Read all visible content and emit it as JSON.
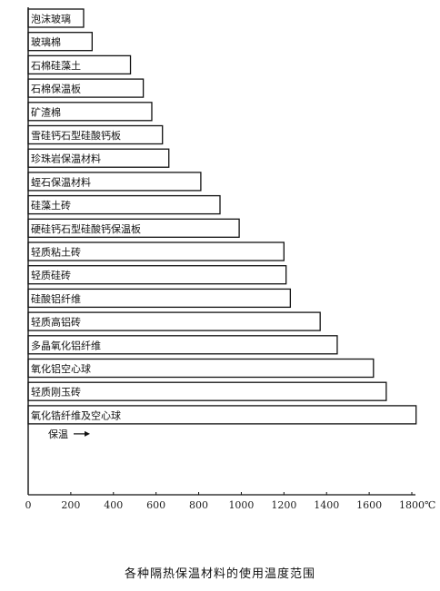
{
  "chart_data": {
    "type": "bar",
    "orientation": "horizontal",
    "title": "各种隔热保温材料的使用温度范围",
    "xlabel": "",
    "ylabel": "",
    "xlim": [
      0,
      1800
    ],
    "x_unit": "℃",
    "xticks": [
      "0",
      "200",
      "400",
      "600",
      "800",
      "1000",
      "1200",
      "1400",
      "1600",
      "1800"
    ],
    "grid": false,
    "categories": [
      "泡沫玻璃",
      "玻璃棉",
      "石棉硅藻土",
      "石棉保温板",
      "矿渣棉",
      "雪硅钙石型硅酸钙板",
      "珍珠岩保温材料",
      "蛭石保温材料",
      "硅藻土砖",
      "硬硅钙石型硅酸钙保温板",
      "轻质粘土砖",
      "轻质硅砖",
      "硅酸铝纤维",
      "轻质高铝砖",
      "多晶氧化铝纤维",
      "氧化铝空心球",
      "轻质刚玉砖",
      "氧化锆纤维及空心球"
    ],
    "values": [
      260,
      300,
      480,
      540,
      580,
      630,
      660,
      810,
      900,
      990,
      1200,
      1210,
      1230,
      1370,
      1450,
      1620,
      1680,
      1820
    ],
    "annotation": {
      "label": "保温",
      "arrow": "right"
    }
  }
}
